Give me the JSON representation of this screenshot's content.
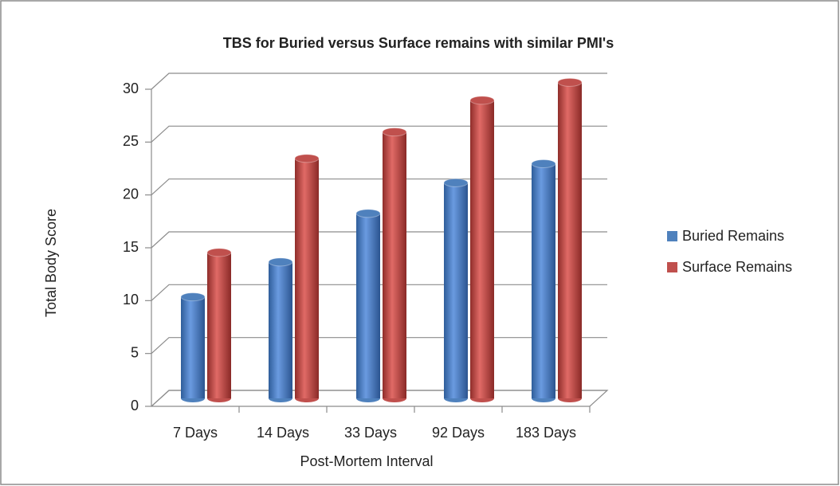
{
  "chart_data": {
    "type": "bar3d",
    "title": "TBS for Buried versus Surface remains with similar PMI's",
    "x_label": "Post-Mortem Interval",
    "y_label": "Total Body Score",
    "categories": [
      "7 Days",
      "14 Days",
      "33 Days",
      "92 Days",
      "183 Days"
    ],
    "series": [
      {
        "name": "Buried Remains",
        "color": "#4f81bd",
        "values": [
          9.6,
          12.9,
          17.5,
          20.4,
          22.2
        ]
      },
      {
        "name": "Surface Remains",
        "color": "#c0504d",
        "values": [
          13.8,
          22.7,
          25.2,
          28.2,
          29.9
        ]
      }
    ],
    "ylim": [
      0,
      30
    ],
    "yticks": [
      0,
      5,
      10,
      15,
      20,
      25,
      30
    ],
    "grid": true,
    "legend": "right"
  }
}
